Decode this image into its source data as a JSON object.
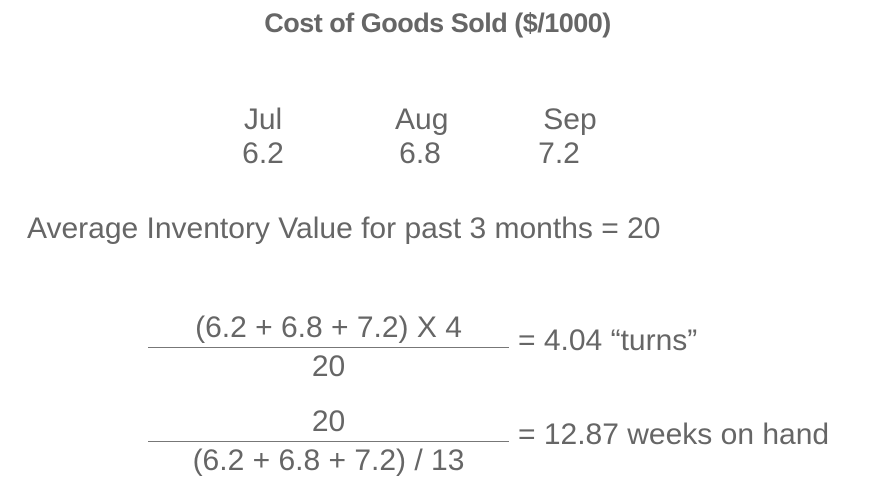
{
  "title": "Cost of Goods Sold ($/1000)",
  "months": [
    {
      "label": "Jul",
      "value": "6.2"
    },
    {
      "label": "Aug",
      "value": "6.8"
    },
    {
      "label": "Sep",
      "value": "7.2"
    }
  ],
  "average_line": "Average Inventory Value for past 3 months = 20",
  "formulas": [
    {
      "numerator": "(6.2 + 6.8 + 7.2) X 4",
      "denominator": "20",
      "result": "= 4.04 “turns”"
    },
    {
      "numerator": "20",
      "denominator": "(6.2 + 6.8 + 7.2) / 13",
      "result": "= 12.87 weeks on hand"
    }
  ]
}
